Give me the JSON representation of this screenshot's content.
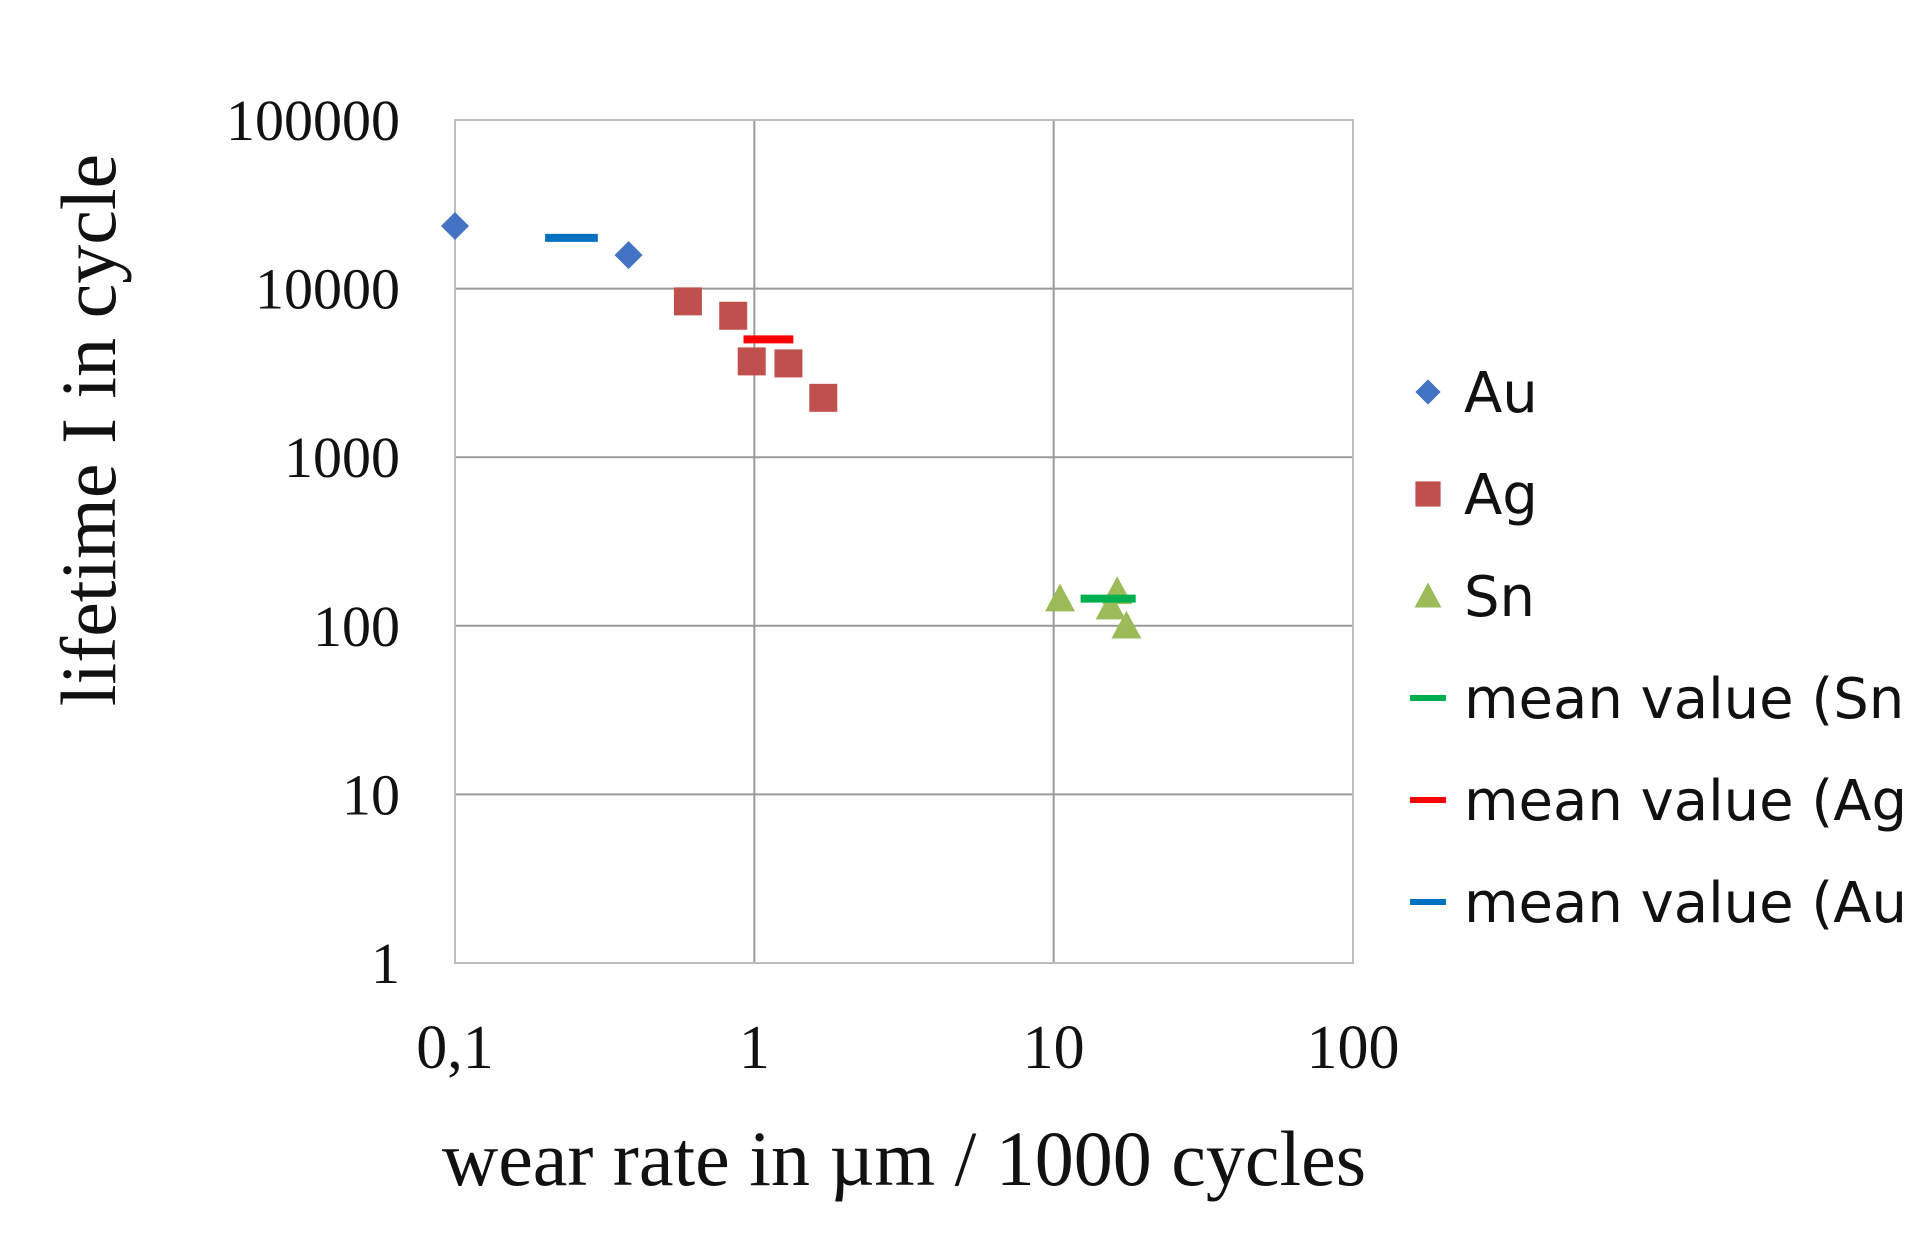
{
  "chart_data": {
    "type": "scatter",
    "title": "",
    "xlabel": "wear rate in µm / 1000 cycles",
    "ylabel": "lifetime  I in cycle",
    "x_scale": "log",
    "y_scale": "log",
    "xlim": [
      0.1,
      100
    ],
    "ylim": [
      1,
      100000
    ],
    "x_ticks": [
      0.1,
      1,
      10,
      100
    ],
    "x_tick_labels": [
      "0,1",
      "1",
      "10",
      "100"
    ],
    "y_ticks": [
      1,
      10,
      100,
      1000,
      10000,
      100000
    ],
    "y_tick_labels": [
      "1",
      "10",
      "100",
      "1000",
      "10000",
      "100000"
    ],
    "grid": true,
    "legend_position": "right",
    "series": [
      {
        "name": "Au",
        "marker": "diamond",
        "color": "#4472C4",
        "points": [
          [
            0.1,
            23500
          ],
          [
            0.38,
            15800
          ]
        ]
      },
      {
        "name": "Ag",
        "marker": "square",
        "color": "#C0504D",
        "points": [
          [
            0.6,
            8400
          ],
          [
            0.85,
            6900
          ],
          [
            0.98,
            3700
          ],
          [
            1.3,
            3600
          ],
          [
            1.7,
            2250
          ]
        ]
      },
      {
        "name": "Sn",
        "marker": "triangle",
        "color": "#9BBB59",
        "points": [
          [
            10.5,
            145
          ],
          [
            15.5,
            130
          ],
          [
            16.3,
            160
          ],
          [
            17.5,
            100
          ]
        ]
      },
      {
        "name": "mean value (Sn)",
        "marker": "line",
        "color": "#00B050",
        "y": 145,
        "x_range": [
          12.3,
          18.8
        ]
      },
      {
        "name": "mean value (Ag)",
        "marker": "line",
        "color": "#FF0000",
        "y": 5000,
        "x_range": [
          0.92,
          1.35
        ]
      },
      {
        "name": "mean value (Au)",
        "marker": "line",
        "color": "#0070C0",
        "y": 20000,
        "x_range": [
          0.2,
          0.3
        ]
      }
    ]
  }
}
